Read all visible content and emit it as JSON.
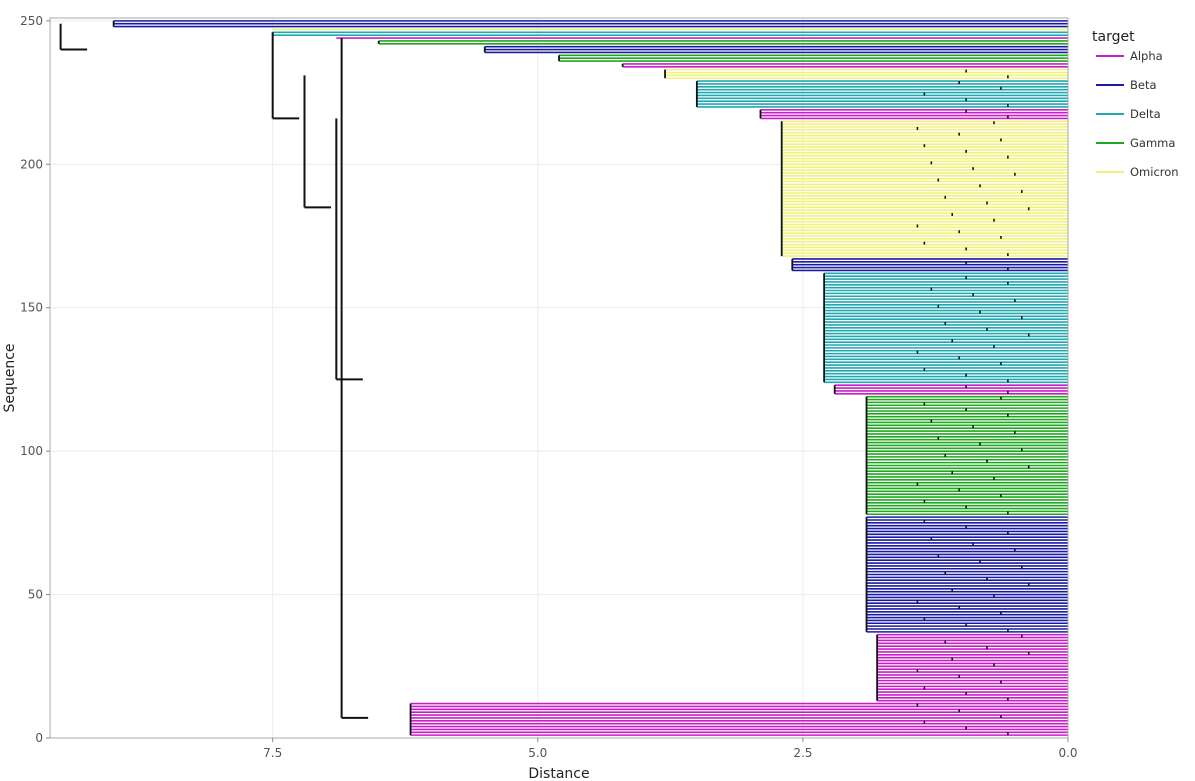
{
  "chart_data": {
    "type": "dendrogram",
    "title": "",
    "xlabel": "Distance",
    "ylabel": "Sequence",
    "xlim": [
      9.6,
      0.0
    ],
    "ylim": [
      0,
      251
    ],
    "x_ticks": [
      7.5,
      5.0,
      2.5,
      0.0
    ],
    "x_tick_labels": [
      "7.5",
      "5.0",
      "2.5",
      "0.0"
    ],
    "y_ticks": [
      0,
      50,
      100,
      150,
      200,
      250
    ],
    "y_tick_labels": [
      "0",
      "50",
      "100",
      "150",
      "200",
      "250"
    ],
    "grid": true,
    "legend": {
      "title": "target",
      "placement": "right",
      "entries": [
        {
          "label": "Alpha",
          "color": "#c81ec8"
        },
        {
          "label": "Beta",
          "color": "#1a1aa6"
        },
        {
          "label": "Delta",
          "color": "#1fa8b0"
        },
        {
          "label": "Gamma",
          "color": "#1fa81f"
        },
        {
          "label": "Omicron",
          "color": "#f2f27a"
        }
      ]
    },
    "leaf_groups": [
      {
        "variant": "Alpha",
        "y_from": 1,
        "y_to": 12,
        "merge_distance": 6.2
      },
      {
        "variant": "Alpha",
        "y_from": 13,
        "y_to": 36,
        "merge_distance": 1.8
      },
      {
        "variant": "Beta",
        "y_from": 37,
        "y_to": 77,
        "merge_distance": 1.9
      },
      {
        "variant": "Gamma",
        "y_from": 78,
        "y_to": 119,
        "merge_distance": 1.9
      },
      {
        "variant": "Alpha",
        "y_from": 120,
        "y_to": 123,
        "merge_distance": 2.2
      },
      {
        "variant": "Delta",
        "y_from": 124,
        "y_to": 162,
        "merge_distance": 2.3
      },
      {
        "variant": "Beta",
        "y_from": 163,
        "y_to": 167,
        "merge_distance": 2.6
      },
      {
        "variant": "Omicron",
        "y_from": 168,
        "y_to": 215,
        "merge_distance": 2.7
      },
      {
        "variant": "Alpha",
        "y_from": 216,
        "y_to": 219,
        "merge_distance": 2.9
      },
      {
        "variant": "Delta",
        "y_from": 220,
        "y_to": 229,
        "merge_distance": 3.5
      },
      {
        "variant": "Omicron",
        "y_from": 230,
        "y_to": 233,
        "merge_distance": 3.8
      },
      {
        "variant": "Alpha",
        "y_from": 234,
        "y_to": 235,
        "merge_distance": 4.2
      },
      {
        "variant": "Gamma",
        "y_from": 236,
        "y_to": 238,
        "merge_distance": 4.8
      },
      {
        "variant": "Beta",
        "y_from": 239,
        "y_to": 241,
        "merge_distance": 5.5
      },
      {
        "variant": "Gamma",
        "y_from": 242,
        "y_to": 243,
        "merge_distance": 6.5
      },
      {
        "variant": "Alpha",
        "y_from": 244,
        "y_to": 244,
        "merge_distance": 6.9
      },
      {
        "variant": "Delta",
        "y_from": 245,
        "y_to": 246,
        "merge_distance": 7.5
      },
      {
        "variant": "Omicron",
        "y_from": 247,
        "y_to": 247,
        "merge_distance": 7.5
      },
      {
        "variant": "Beta",
        "y_from": 248,
        "y_to": 250,
        "merge_distance": 9.0
      }
    ],
    "top_merges": [
      {
        "distance": 9.5,
        "y_low": 240,
        "y_high": 249
      },
      {
        "distance": 7.5,
        "y_low": 216,
        "y_high": 246
      },
      {
        "distance": 7.2,
        "y_low": 185,
        "y_high": 231
      },
      {
        "distance": 6.9,
        "y_low": 125,
        "y_high": 216
      },
      {
        "distance": 6.85,
        "y_low": 7,
        "y_high": 244
      }
    ]
  }
}
